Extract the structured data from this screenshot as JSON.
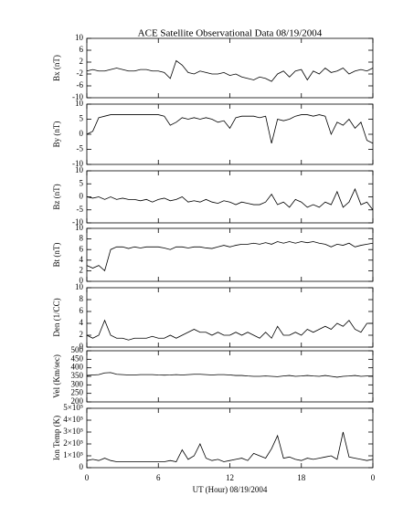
{
  "chart_data": [
    {
      "type": "line",
      "title": "ACE Satellite Observational Data   08/19/2004",
      "ylabel": "Bx (nT)",
      "color": "#000000",
      "x": [
        0,
        0.5,
        1,
        1.5,
        2,
        2.5,
        3,
        3.5,
        4,
        4.5,
        5,
        5.5,
        6,
        6.5,
        7,
        7.5,
        8,
        8.5,
        9,
        9.5,
        10,
        10.5,
        11,
        11.5,
        12,
        12.5,
        13,
        13.5,
        14,
        14.5,
        15,
        15.5,
        16,
        16.5,
        17,
        17.5,
        18,
        18.5,
        19,
        19.5,
        20,
        20.5,
        21,
        21.5,
        22,
        22.5,
        23,
        23.5,
        24
      ],
      "values": [
        -1,
        -0.5,
        -1,
        -1,
        -0.5,
        0,
        -0.5,
        -1,
        -1,
        -0.5,
        -0.5,
        -1,
        -1,
        -1.5,
        -3.5,
        2.5,
        1,
        -1.5,
        -2,
        -1,
        -1.5,
        -2,
        -2,
        -1.5,
        -2.5,
        -2,
        -3,
        -3.5,
        -4,
        -3,
        -3.5,
        -4.5,
        -2,
        -1,
        -3,
        -1,
        -0.5,
        -4,
        -1,
        -2,
        0,
        -1.5,
        -1,
        0,
        -2,
        -1,
        -0.5,
        -1,
        0
      ],
      "ylim": [
        -10,
        10
      ],
      "yticks": [
        10,
        6,
        2,
        -2,
        -6,
        -10
      ]
    },
    {
      "type": "line",
      "ylabel": "By (nT)",
      "color": "#000000",
      "x": [
        0,
        0.5,
        1,
        1.5,
        2,
        2.5,
        3,
        3.5,
        4,
        4.5,
        5,
        5.5,
        6,
        6.5,
        7,
        7.5,
        8,
        8.5,
        9,
        9.5,
        10,
        10.5,
        11,
        11.5,
        12,
        12.5,
        13,
        13.5,
        14,
        14.5,
        15,
        15.5,
        16,
        16.5,
        17,
        17.5,
        18,
        18.5,
        19,
        19.5,
        20,
        20.5,
        21,
        21.5,
        22,
        22.5,
        23,
        23.5,
        24
      ],
      "values": [
        0,
        1,
        5.5,
        6,
        6.5,
        6.5,
        6.5,
        6.5,
        6.5,
        6.5,
        6.5,
        6.5,
        6.5,
        6,
        3,
        4,
        5.5,
        5,
        5.5,
        5,
        5.5,
        5,
        4,
        4.5,
        2,
        5.5,
        6,
        6,
        6,
        5.5,
        6,
        -3,
        5,
        4.5,
        5,
        6,
        6.5,
        6.5,
        6,
        6.5,
        6,
        0,
        4,
        3,
        5,
        2,
        4,
        -2,
        -3
      ],
      "ylim": [
        -10,
        10
      ],
      "yticks": [
        10,
        5,
        0,
        -5,
        -10
      ]
    },
    {
      "type": "line",
      "ylabel": "Bz (nT)",
      "color": "#000000",
      "x": [
        0,
        0.5,
        1,
        1.5,
        2,
        2.5,
        3,
        3.5,
        4,
        4.5,
        5,
        5.5,
        6,
        6.5,
        7,
        7.5,
        8,
        8.5,
        9,
        9.5,
        10,
        10.5,
        11,
        11.5,
        12,
        12.5,
        13,
        13.5,
        14,
        14.5,
        15,
        15.5,
        16,
        16.5,
        17,
        17.5,
        18,
        18.5,
        19,
        19.5,
        20,
        20.5,
        21,
        21.5,
        22,
        22.5,
        23,
        23.5,
        24
      ],
      "values": [
        0,
        -0.5,
        0,
        -1,
        0,
        -1,
        -0.5,
        -1,
        -1,
        -1.5,
        -1,
        -2,
        -1,
        -0.5,
        -1.5,
        -1,
        0,
        -2,
        -1.5,
        -2,
        -1,
        -2,
        -2.5,
        -1.5,
        -2,
        -3,
        -2,
        -2.5,
        -3,
        -3,
        -2,
        1,
        -3,
        -2,
        -4,
        -1,
        -2,
        -4,
        -3,
        -4,
        -2,
        -3,
        2,
        -4,
        -2,
        3,
        -3,
        -2,
        -5
      ],
      "ylim": [
        -10,
        10
      ],
      "yticks": [
        10,
        5,
        0,
        -5,
        -10
      ]
    },
    {
      "type": "line",
      "ylabel": "Bt (nT)",
      "color": "#000000",
      "x": [
        0,
        0.5,
        1,
        1.5,
        2,
        2.5,
        3,
        3.5,
        4,
        4.5,
        5,
        5.5,
        6,
        6.5,
        7,
        7.5,
        8,
        8.5,
        9,
        9.5,
        10,
        10.5,
        11,
        11.5,
        12,
        12.5,
        13,
        13.5,
        14,
        14.5,
        15,
        15.5,
        16,
        16.5,
        17,
        17.5,
        18,
        18.5,
        19,
        19.5,
        20,
        20.5,
        21,
        21.5,
        22,
        22.5,
        23,
        23.5,
        24
      ],
      "values": [
        3,
        2.5,
        3,
        2,
        6,
        6.5,
        6.5,
        6.2,
        6.5,
        6.3,
        6.5,
        6.5,
        6.5,
        6.3,
        6,
        6.5,
        6.5,
        6.3,
        6.5,
        6.5,
        6.3,
        6.2,
        6.5,
        6.8,
        6.5,
        6.8,
        7,
        7,
        7.2,
        7,
        7.3,
        7,
        7.5,
        7.2,
        7.5,
        7.2,
        7.5,
        7.3,
        7.5,
        7.2,
        7,
        6.5,
        7,
        6.8,
        7.2,
        6.5,
        6.8,
        7,
        7.2
      ],
      "ylim": [
        0,
        10
      ],
      "yticks": [
        10,
        8,
        6,
        4,
        2,
        0
      ]
    },
    {
      "type": "line",
      "ylabel": "Den (1/CC)",
      "color": "#000000",
      "x": [
        0,
        0.5,
        1,
        1.5,
        2,
        2.5,
        3,
        3.5,
        4,
        4.5,
        5,
        5.5,
        6,
        6.5,
        7,
        7.5,
        8,
        8.5,
        9,
        9.5,
        10,
        10.5,
        11,
        11.5,
        12,
        12.5,
        13,
        13.5,
        14,
        14.5,
        15,
        15.5,
        16,
        16.5,
        17,
        17.5,
        18,
        18.5,
        19,
        19.5,
        20,
        20.5,
        21,
        21.5,
        22,
        22.5,
        23,
        23.5,
        24
      ],
      "values": [
        2,
        1.5,
        2,
        4.5,
        2,
        1.5,
        1.5,
        1.2,
        1.5,
        1.5,
        1.5,
        1.8,
        1.5,
        1.5,
        2,
        1.5,
        2,
        2.5,
        3,
        2.5,
        2.5,
        2,
        2.5,
        2,
        2,
        2.5,
        2,
        2.5,
        2,
        1.5,
        2.5,
        1.5,
        3.5,
        2,
        2,
        2.5,
        2,
        3,
        2.5,
        3,
        3.5,
        3,
        4,
        3.5,
        4.5,
        3,
        2.5,
        4,
        4
      ],
      "ylim": [
        0,
        10
      ],
      "yticks": [
        10,
        8,
        6,
        4,
        2,
        0
      ]
    },
    {
      "type": "line",
      "ylabel": "Vel (Km/sec)",
      "color": "#000000",
      "x": [
        0,
        0.5,
        1,
        1.5,
        2,
        2.5,
        3,
        3.5,
        4,
        4.5,
        5,
        5.5,
        6,
        6.5,
        7,
        7.5,
        8,
        8.5,
        9,
        9.5,
        10,
        10.5,
        11,
        11.5,
        12,
        12.5,
        13,
        13.5,
        14,
        14.5,
        15,
        15.5,
        16,
        16.5,
        17,
        17.5,
        18,
        18.5,
        19,
        19.5,
        20,
        20.5,
        21,
        21.5,
        22,
        22.5,
        23,
        23.5,
        24
      ],
      "values": [
        355,
        358,
        360,
        370,
        372,
        362,
        360,
        358,
        358,
        360,
        360,
        360,
        358,
        357,
        358,
        360,
        358,
        360,
        362,
        362,
        360,
        358,
        360,
        360,
        358,
        355,
        355,
        352,
        350,
        350,
        352,
        350,
        348,
        352,
        355,
        350,
        352,
        355,
        352,
        350,
        355,
        350,
        345,
        350,
        352,
        355,
        350,
        352,
        352
      ],
      "ylim": [
        200,
        500
      ],
      "yticks": [
        500,
        450,
        400,
        350,
        300,
        250,
        200
      ]
    },
    {
      "type": "line",
      "ylabel": "Ion Temp (K)",
      "xlabel": "UT (Hour)  08/19/2004",
      "color": "#000000",
      "x": [
        0,
        0.5,
        1,
        1.5,
        2,
        2.5,
        3,
        3.5,
        4,
        4.5,
        5,
        5.5,
        6,
        6.5,
        7,
        7.5,
        8,
        8.5,
        9,
        9.5,
        10,
        10.5,
        11,
        11.5,
        12,
        12.5,
        13,
        13.5,
        14,
        14.5,
        15,
        15.5,
        16,
        16.5,
        17,
        17.5,
        18,
        18.5,
        19,
        19.5,
        20,
        20.5,
        21,
        21.5,
        22,
        22.5,
        23,
        23.5,
        24
      ],
      "values": [
        60000,
        70000,
        60000,
        80000,
        60000,
        50000,
        50000,
        50000,
        50000,
        50000,
        50000,
        50000,
        50000,
        50000,
        60000,
        50000,
        150000,
        70000,
        100000,
        200000,
        80000,
        60000,
        70000,
        50000,
        60000,
        70000,
        80000,
        60000,
        120000,
        100000,
        80000,
        160000,
        270000,
        80000,
        90000,
        70000,
        60000,
        80000,
        70000,
        80000,
        90000,
        100000,
        70000,
        300000,
        90000,
        80000,
        70000,
        60000,
        70000
      ],
      "ylim": [
        0,
        500000
      ],
      "yticks": [
        {
          "value": 500000,
          "label": "5×10⁵"
        },
        {
          "value": 400000,
          "label": "4×10⁵"
        },
        {
          "value": 300000,
          "label": "3×10⁵"
        },
        {
          "value": 200000,
          "label": "2×10⁵"
        },
        {
          "value": 100000,
          "label": "1×10⁵"
        },
        0
      ],
      "xlim": [
        0,
        24
      ],
      "xticks": [
        0,
        6,
        12,
        18,
        {
          "value": 24,
          "label": "0"
        }
      ]
    }
  ]
}
